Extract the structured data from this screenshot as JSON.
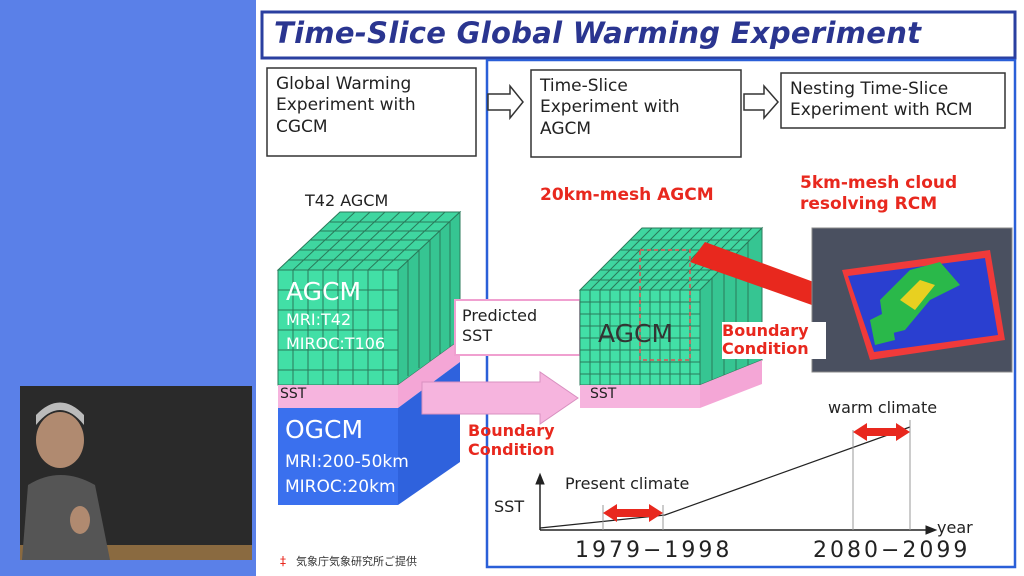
{
  "title": "Time-Slice Global Warming Experiment",
  "flow": [
    {
      "label": "Global Warming Experiment with CGCM"
    },
    {
      "label": "Time-Slice Experiment with AGCM"
    },
    {
      "label": "Nesting Time-Slice Experiment with RCM"
    }
  ],
  "left_model": {
    "heading": "T42 AGCM",
    "atmosphere": "AGCM",
    "atmosphere_details": [
      "MRI:T42",
      "MIROC:T106"
    ],
    "sst": "SST",
    "ocean": "OGCM",
    "ocean_details": [
      "MRI:200-50km",
      "MIROC:20km"
    ]
  },
  "predicted_sst": "Predicted SST",
  "boundary_condition_left": "Boundary Condition",
  "middle_model": {
    "heading": "20km-mesh AGCM",
    "atmosphere": "AGCM",
    "sst": "SST"
  },
  "boundary_condition_right": "Boundary Condition",
  "rcm": {
    "heading": "5km-mesh cloud resolving RCM"
  },
  "timeline": {
    "y_label": "SST",
    "x_label": "year",
    "present": "Present climate",
    "warm": "warm climate",
    "present_period": "1979−1998",
    "warm_period": "2080−2099"
  },
  "footnote": {
    "mark": "‡",
    "text": "気象庁気象研究所ご提供"
  }
}
